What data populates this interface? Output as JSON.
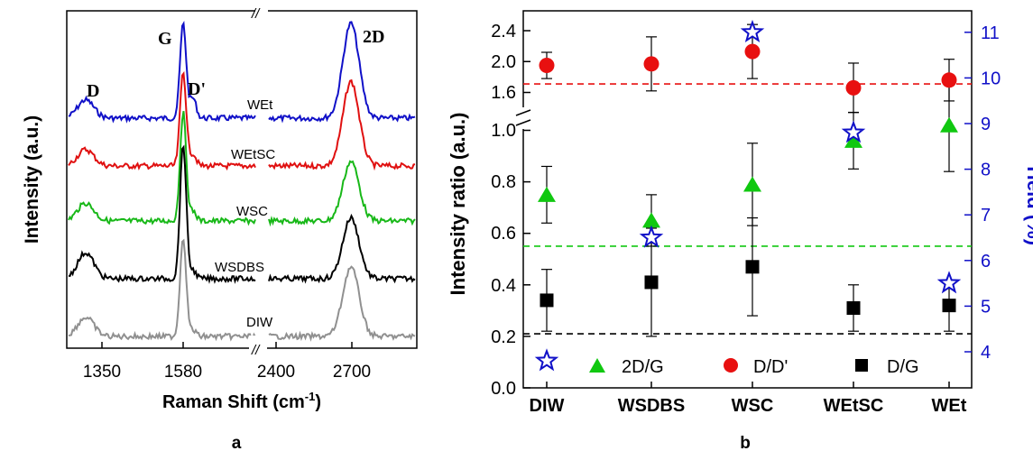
{
  "chart_data": [
    {
      "panel": "a",
      "type": "line",
      "xlabel_main": "Raman Shift (cm",
      "xlabel_sup": "-1",
      "xlabel_close": ")",
      "ylabel": "Intensity (a.u.)",
      "xticks": [
        "1350",
        "1580",
        "2400",
        "2700"
      ],
      "break_mark": "//",
      "peak_labels": [
        "D",
        "G",
        "D'",
        "2D"
      ],
      "colors": {
        "WEt": "#1010c8",
        "WEtSC": "#e01010",
        "WSC": "#18b818",
        "WSDBS": "#000000",
        "DIW": "#909090"
      },
      "series": [
        {
          "name": "WEt",
          "D": 0.35,
          "G": 1.0,
          "Dp": 0.35,
          "2D": 1.0
        },
        {
          "name": "WEtSC",
          "D": 0.3,
          "G": 0.95,
          "Dp": 0.2,
          "2D": 0.85
        },
        {
          "name": "WSC",
          "D": 0.3,
          "G": 1.0,
          "Dp": 0.15,
          "2D": 0.55
        },
        {
          "name": "WSDBS",
          "D": 0.35,
          "G": 1.0,
          "Dp": 0.1,
          "2D": 0.45
        },
        {
          "name": "DIW",
          "D": 0.35,
          "G": 1.0,
          "Dp": 0.1,
          "2D": 0.7
        }
      ]
    },
    {
      "panel": "b",
      "type": "scatter",
      "categories": [
        "DIW",
        "WSDBS",
        "WSC",
        "WEtSC",
        "WEt"
      ],
      "ylabel": "Intensity ratio (a.u.)",
      "y2label": "Yield (%)",
      "yticks_lower": [
        "0.0",
        "0.2",
        "0.4",
        "0.6",
        "0.8",
        "1.0"
      ],
      "yticks_upper": [
        "1.6",
        "2.0",
        "2.4"
      ],
      "y2ticks": [
        "4",
        "5",
        "6",
        "7",
        "8",
        "9",
        "10",
        "11"
      ],
      "series": [
        {
          "name": "2D/G",
          "marker": "triangle",
          "color": "#10c810",
          "values": [
            0.75,
            0.65,
            0.79,
            0.96,
            1.02
          ],
          "errors": [
            0.11,
            0.1,
            0.16,
            0.11,
            0.18
          ]
        },
        {
          "name": "D/D'",
          "marker": "circle",
          "color": "#e81010",
          "values": [
            1.95,
            1.97,
            2.13,
            1.66,
            1.76
          ],
          "errors": [
            0.17,
            0.35,
            0.35,
            0.32,
            0.27
          ]
        },
        {
          "name": "D/G",
          "marker": "square",
          "color": "#000000",
          "values": [
            0.34,
            0.41,
            0.47,
            0.31,
            0.32
          ],
          "errors": [
            0.12,
            0.21,
            0.19,
            0.09,
            0.1
          ]
        }
      ],
      "yield": {
        "marker": "star",
        "color": "#1010c8",
        "values": [
          3.8,
          6.5,
          11.0,
          8.8,
          5.5
        ]
      },
      "reference_lines": [
        {
          "value": 1.71,
          "color": "#e81010"
        },
        {
          "value": 0.55,
          "color": "#10c810"
        },
        {
          "value": 0.21,
          "color": "#000000"
        }
      ]
    }
  ],
  "panel_labels": {
    "a": "a",
    "b": "b"
  }
}
